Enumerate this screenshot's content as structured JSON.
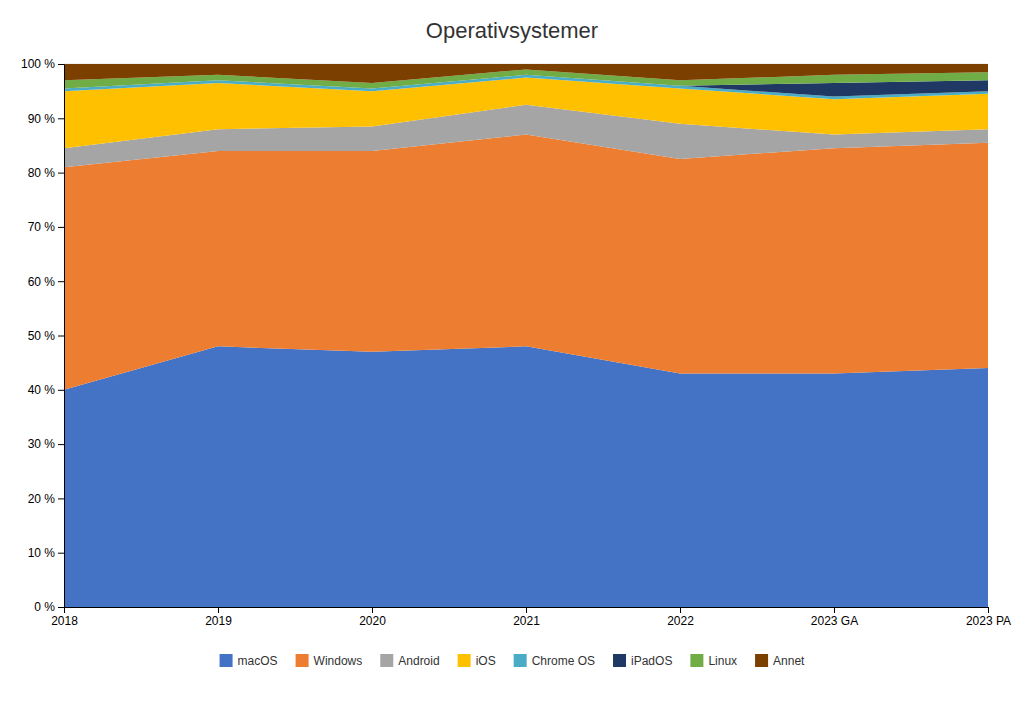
{
  "chart_data": {
    "type": "area",
    "stacked": true,
    "title": "Operativsystemer",
    "categories": [
      "2018",
      "2019",
      "2020",
      "2021",
      "2022",
      "2023 GA",
      "2023 PA"
    ],
    "series": [
      {
        "name": "macOS",
        "color": "#4472C4",
        "values": [
          40.0,
          48.0,
          47.0,
          48.0,
          43.0,
          43.0,
          44.0
        ]
      },
      {
        "name": "Windows",
        "color": "#ED7D31",
        "values": [
          41.0,
          36.0,
          37.0,
          39.0,
          39.5,
          41.5,
          41.5
        ]
      },
      {
        "name": "Android",
        "color": "#A5A5A5",
        "values": [
          3.5,
          4.0,
          4.5,
          5.5,
          6.5,
          2.5,
          2.5
        ]
      },
      {
        "name": "iOS",
        "color": "#FFC000",
        "values": [
          10.5,
          8.5,
          6.5,
          5.0,
          6.5,
          6.5,
          6.5
        ]
      },
      {
        "name": "Chrome OS",
        "color": "#4BACC6",
        "values": [
          0.5,
          0.5,
          0.5,
          0.5,
          0.5,
          0.5,
          0.5
        ]
      },
      {
        "name": "iPadOS",
        "color": "#1F3864",
        "values": [
          0.0,
          0.0,
          0.0,
          0.0,
          0.0,
          2.5,
          2.0
        ]
      },
      {
        "name": "Linux",
        "color": "#70AD47",
        "values": [
          1.5,
          1.0,
          1.0,
          1.0,
          1.0,
          1.5,
          1.5
        ]
      },
      {
        "name": "Annet",
        "color": "#7B3F00",
        "values": [
          3.0,
          2.0,
          3.5,
          1.0,
          3.0,
          2.0,
          1.5
        ]
      }
    ],
    "ylim": [
      0,
      100
    ],
    "yticks": [
      {
        "value": 0,
        "label": "0 %"
      },
      {
        "value": 10,
        "label": "10 %"
      },
      {
        "value": 20,
        "label": "20 %"
      },
      {
        "value": 30,
        "label": "30 %"
      },
      {
        "value": 40,
        "label": "40 %"
      },
      {
        "value": 50,
        "label": "50 %"
      },
      {
        "value": 60,
        "label": "60 %"
      },
      {
        "value": 70,
        "label": "70 %"
      },
      {
        "value": 80,
        "label": "80 %"
      },
      {
        "value": 90,
        "label": "90 %"
      },
      {
        "value": 100,
        "label": "100 %"
      }
    ],
    "grid": true,
    "legend": "bottom"
  }
}
